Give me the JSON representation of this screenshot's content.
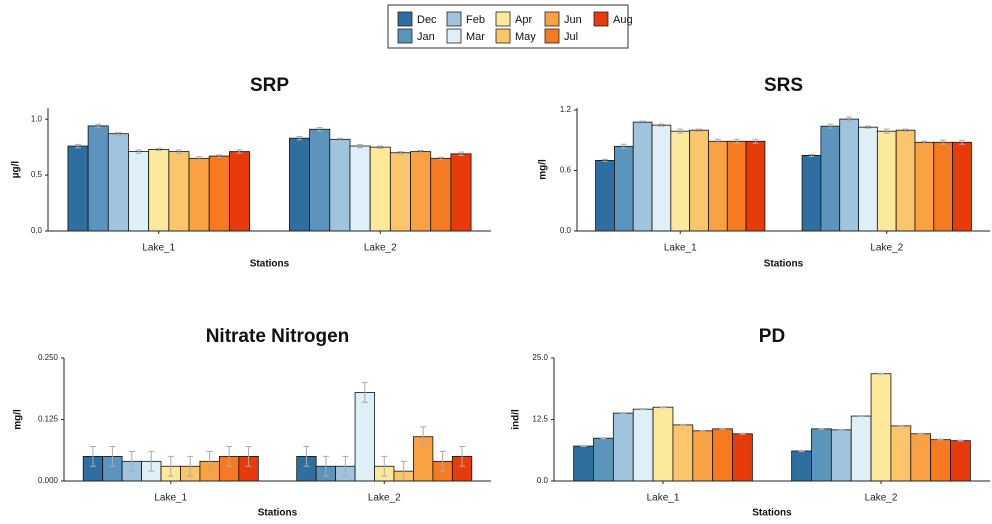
{
  "chart_data": [
    {
      "type": "bar",
      "title": "SRP",
      "x_label": "Stations",
      "y_label": "µg/l",
      "categories": [
        "Lake_1",
        "Lake_2"
      ],
      "ylim": [
        0,
        1.1
      ],
      "yticks": [
        {
          "value": 0,
          "label": "0.0"
        },
        {
          "value": 0.5,
          "label": "0.5"
        },
        {
          "value": 1,
          "label": "1.0"
        }
      ],
      "series": [
        {
          "name": "Dec",
          "color": "#2f6f9f",
          "values": [
            0.76,
            0.83
          ],
          "errors": [
            0.015,
            0.015
          ]
        },
        {
          "name": "Jan",
          "color": "#5b95be",
          "values": [
            0.94,
            0.91
          ],
          "errors": [
            0.015,
            0.015
          ]
        },
        {
          "name": "Feb",
          "color": "#a0c4de",
          "values": [
            0.87,
            0.82
          ],
          "errors": [
            0.01,
            0.01
          ]
        },
        {
          "name": "Mar",
          "color": "#dfeff8",
          "values": [
            0.71,
            0.76
          ],
          "errors": [
            0.015,
            0.015
          ]
        },
        {
          "name": "Apr",
          "color": "#fde99c",
          "values": [
            0.73,
            0.75
          ],
          "errors": [
            0.01,
            0.01
          ]
        },
        {
          "name": "May",
          "color": "#fbc56c",
          "values": [
            0.71,
            0.7
          ],
          "errors": [
            0.015,
            0.01
          ]
        },
        {
          "name": "Jun",
          "color": "#f9a143",
          "values": [
            0.65,
            0.71
          ],
          "errors": [
            0.015,
            0.01
          ]
        },
        {
          "name": "Jul",
          "color": "#f67b20",
          "values": [
            0.67,
            0.65
          ],
          "errors": [
            0.01,
            0.01
          ]
        },
        {
          "name": "Aug",
          "color": "#e83b0b",
          "values": [
            0.71,
            0.69
          ],
          "errors": [
            0.015,
            0.015
          ]
        }
      ]
    },
    {
      "type": "bar",
      "title": "SRS",
      "x_label": "Stations",
      "y_label": "mg/l",
      "categories": [
        "Lake_1",
        "Lake_2"
      ],
      "ylim": [
        0,
        1.22
      ],
      "yticks": [
        {
          "value": 0,
          "label": "0.0"
        },
        0.6,
        1.2
      ],
      "series": [
        {
          "name": "Dec",
          "color": "#2f6f9f",
          "values": [
            0.7,
            0.75
          ],
          "errors": [
            0.01,
            0.01
          ]
        },
        {
          "name": "Jan",
          "color": "#5b95be",
          "values": [
            0.84,
            1.04
          ],
          "errors": [
            0.02,
            0.02
          ]
        },
        {
          "name": "Feb",
          "color": "#a0c4de",
          "values": [
            1.08,
            1.11
          ],
          "errors": [
            0.01,
            0.02
          ]
        },
        {
          "name": "Mar",
          "color": "#dfeff8",
          "values": [
            1.05,
            1.03
          ],
          "errors": [
            0.01,
            0.01
          ]
        },
        {
          "name": "Apr",
          "color": "#fde99c",
          "values": [
            0.99,
            0.99
          ],
          "errors": [
            0.02,
            0.02
          ]
        },
        {
          "name": "May",
          "color": "#fbc56c",
          "values": [
            1.0,
            1.0
          ],
          "errors": [
            0.01,
            0.01
          ]
        },
        {
          "name": "Jun",
          "color": "#f9a143",
          "values": [
            0.89,
            0.88
          ],
          "errors": [
            0.02,
            0.01
          ]
        },
        {
          "name": "Jul",
          "color": "#f67b20",
          "values": [
            0.89,
            0.88
          ],
          "errors": [
            0.02,
            0.02
          ]
        },
        {
          "name": "Aug",
          "color": "#e83b0b",
          "values": [
            0.89,
            0.88
          ],
          "errors": [
            0.02,
            0.02
          ]
        }
      ]
    },
    {
      "type": "bar",
      "title": "Nitrate Nitrogen",
      "x_label": "Stations",
      "y_label": "mg/l",
      "categories": [
        "Lake_1",
        "Lake_2"
      ],
      "ylim": [
        0,
        0.25
      ],
      "yticks": [
        {
          "value": 0,
          "label": "0.000"
        },
        0.125,
        {
          "value": 0.25,
          "label": "0.250"
        }
      ],
      "series": [
        {
          "name": "Dec",
          "color": "#2f6f9f",
          "values": [
            0.05,
            0.05
          ],
          "errors": [
            0.02,
            0.02
          ]
        },
        {
          "name": "Jan",
          "color": "#5b95be",
          "values": [
            0.05,
            0.03
          ],
          "errors": [
            0.02,
            0.02
          ]
        },
        {
          "name": "Feb",
          "color": "#a0c4de",
          "values": [
            0.04,
            0.03
          ],
          "errors": [
            0.02,
            0.02
          ]
        },
        {
          "name": "Mar",
          "color": "#dfeff8",
          "values": [
            0.04,
            0.18
          ],
          "errors": [
            0.02,
            0.02
          ]
        },
        {
          "name": "Apr",
          "color": "#fde99c",
          "values": [
            0.03,
            0.03
          ],
          "errors": [
            0.02,
            0.02
          ]
        },
        {
          "name": "May",
          "color": "#fbc56c",
          "values": [
            0.03,
            0.02
          ],
          "errors": [
            0.02,
            0.02
          ]
        },
        {
          "name": "Jun",
          "color": "#f9a143",
          "values": [
            0.04,
            0.09
          ],
          "errors": [
            0.02,
            0.02
          ]
        },
        {
          "name": "Jul",
          "color": "#f67b20",
          "values": [
            0.05,
            0.04
          ],
          "errors": [
            0.02,
            0.02
          ]
        },
        {
          "name": "Aug",
          "color": "#e83b0b",
          "values": [
            0.05,
            0.05
          ],
          "errors": [
            0.02,
            0.02
          ]
        }
      ]
    },
    {
      "type": "bar",
      "title": "PD",
      "x_label": "Stations",
      "y_label": "ind/l",
      "categories": [
        "Lake_1",
        "Lake_2"
      ],
      "ylim": [
        0,
        25
      ],
      "yticks": [
        {
          "value": 0,
          "label": "0.0"
        },
        12.5,
        {
          "value": 25,
          "label": "25.0"
        }
      ],
      "series": [
        {
          "name": "Dec",
          "color": "#2f6f9f",
          "values": [
            7.1,
            6.1
          ],
          "errors": [
            0.1,
            0.1
          ]
        },
        {
          "name": "Jan",
          "color": "#5b95be",
          "values": [
            8.7,
            10.6
          ],
          "errors": [
            0.1,
            0.1
          ]
        },
        {
          "name": "Feb",
          "color": "#a0c4de",
          "values": [
            13.8,
            10.4
          ],
          "errors": [
            0.1,
            0.1
          ]
        },
        {
          "name": "Mar",
          "color": "#dfeff8",
          "values": [
            14.6,
            13.2
          ],
          "errors": [
            0.1,
            0.1
          ]
        },
        {
          "name": "Apr",
          "color": "#fde99c",
          "values": [
            15.0,
            21.8
          ],
          "errors": [
            0.1,
            0.1
          ]
        },
        {
          "name": "May",
          "color": "#fbc56c",
          "values": [
            11.4,
            11.2
          ],
          "errors": [
            0.1,
            0.1
          ]
        },
        {
          "name": "Jun",
          "color": "#f9a143",
          "values": [
            10.2,
            9.6
          ],
          "errors": [
            0.1,
            0.1
          ]
        },
        {
          "name": "Jul",
          "color": "#f67b20",
          "values": [
            10.6,
            8.4
          ],
          "errors": [
            0.1,
            0.1
          ]
        },
        {
          "name": "Aug",
          "color": "#e83b0b",
          "values": [
            9.6,
            8.2
          ],
          "errors": [
            0.1,
            0.1
          ]
        }
      ]
    }
  ]
}
